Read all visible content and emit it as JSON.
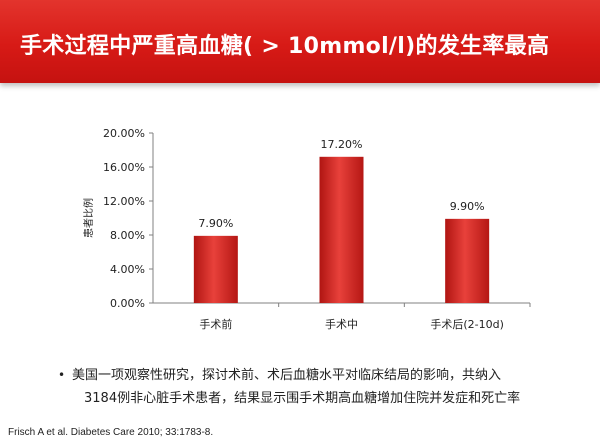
{
  "header": {
    "title": "手术过程中严重高血糖( > 10mmol/l)的发生率最高",
    "accent_color": "#d71a16"
  },
  "chart_data": {
    "type": "bar",
    "categories": [
      "手术前",
      "手术中",
      "手术后(2-10d)"
    ],
    "values": [
      7.9,
      17.2,
      9.9
    ],
    "data_labels": [
      "7.90%",
      "17.20%",
      "9.90%"
    ],
    "ylabel": "患者比例",
    "ylim": [
      0,
      20
    ],
    "yticks": [
      0,
      4,
      8,
      12,
      16,
      20
    ],
    "ytick_labels": [
      "0.00%",
      "4.00%",
      "8.00%",
      "12.00%",
      "16.00%",
      "20.00%"
    ],
    "grid": false,
    "bar_color": "#d42420"
  },
  "bullet": {
    "marker": "•",
    "line1": "美国一项观察性研究，探讨术前、术后血糖水平对临床结局的影响，共纳入",
    "line2": "3184例非心脏手术患者，结果显示围手术期高血糖增加住院并发症和死亡率"
  },
  "citation": "Frisch A et al. Diabetes Care 2010; 33:1783-8."
}
